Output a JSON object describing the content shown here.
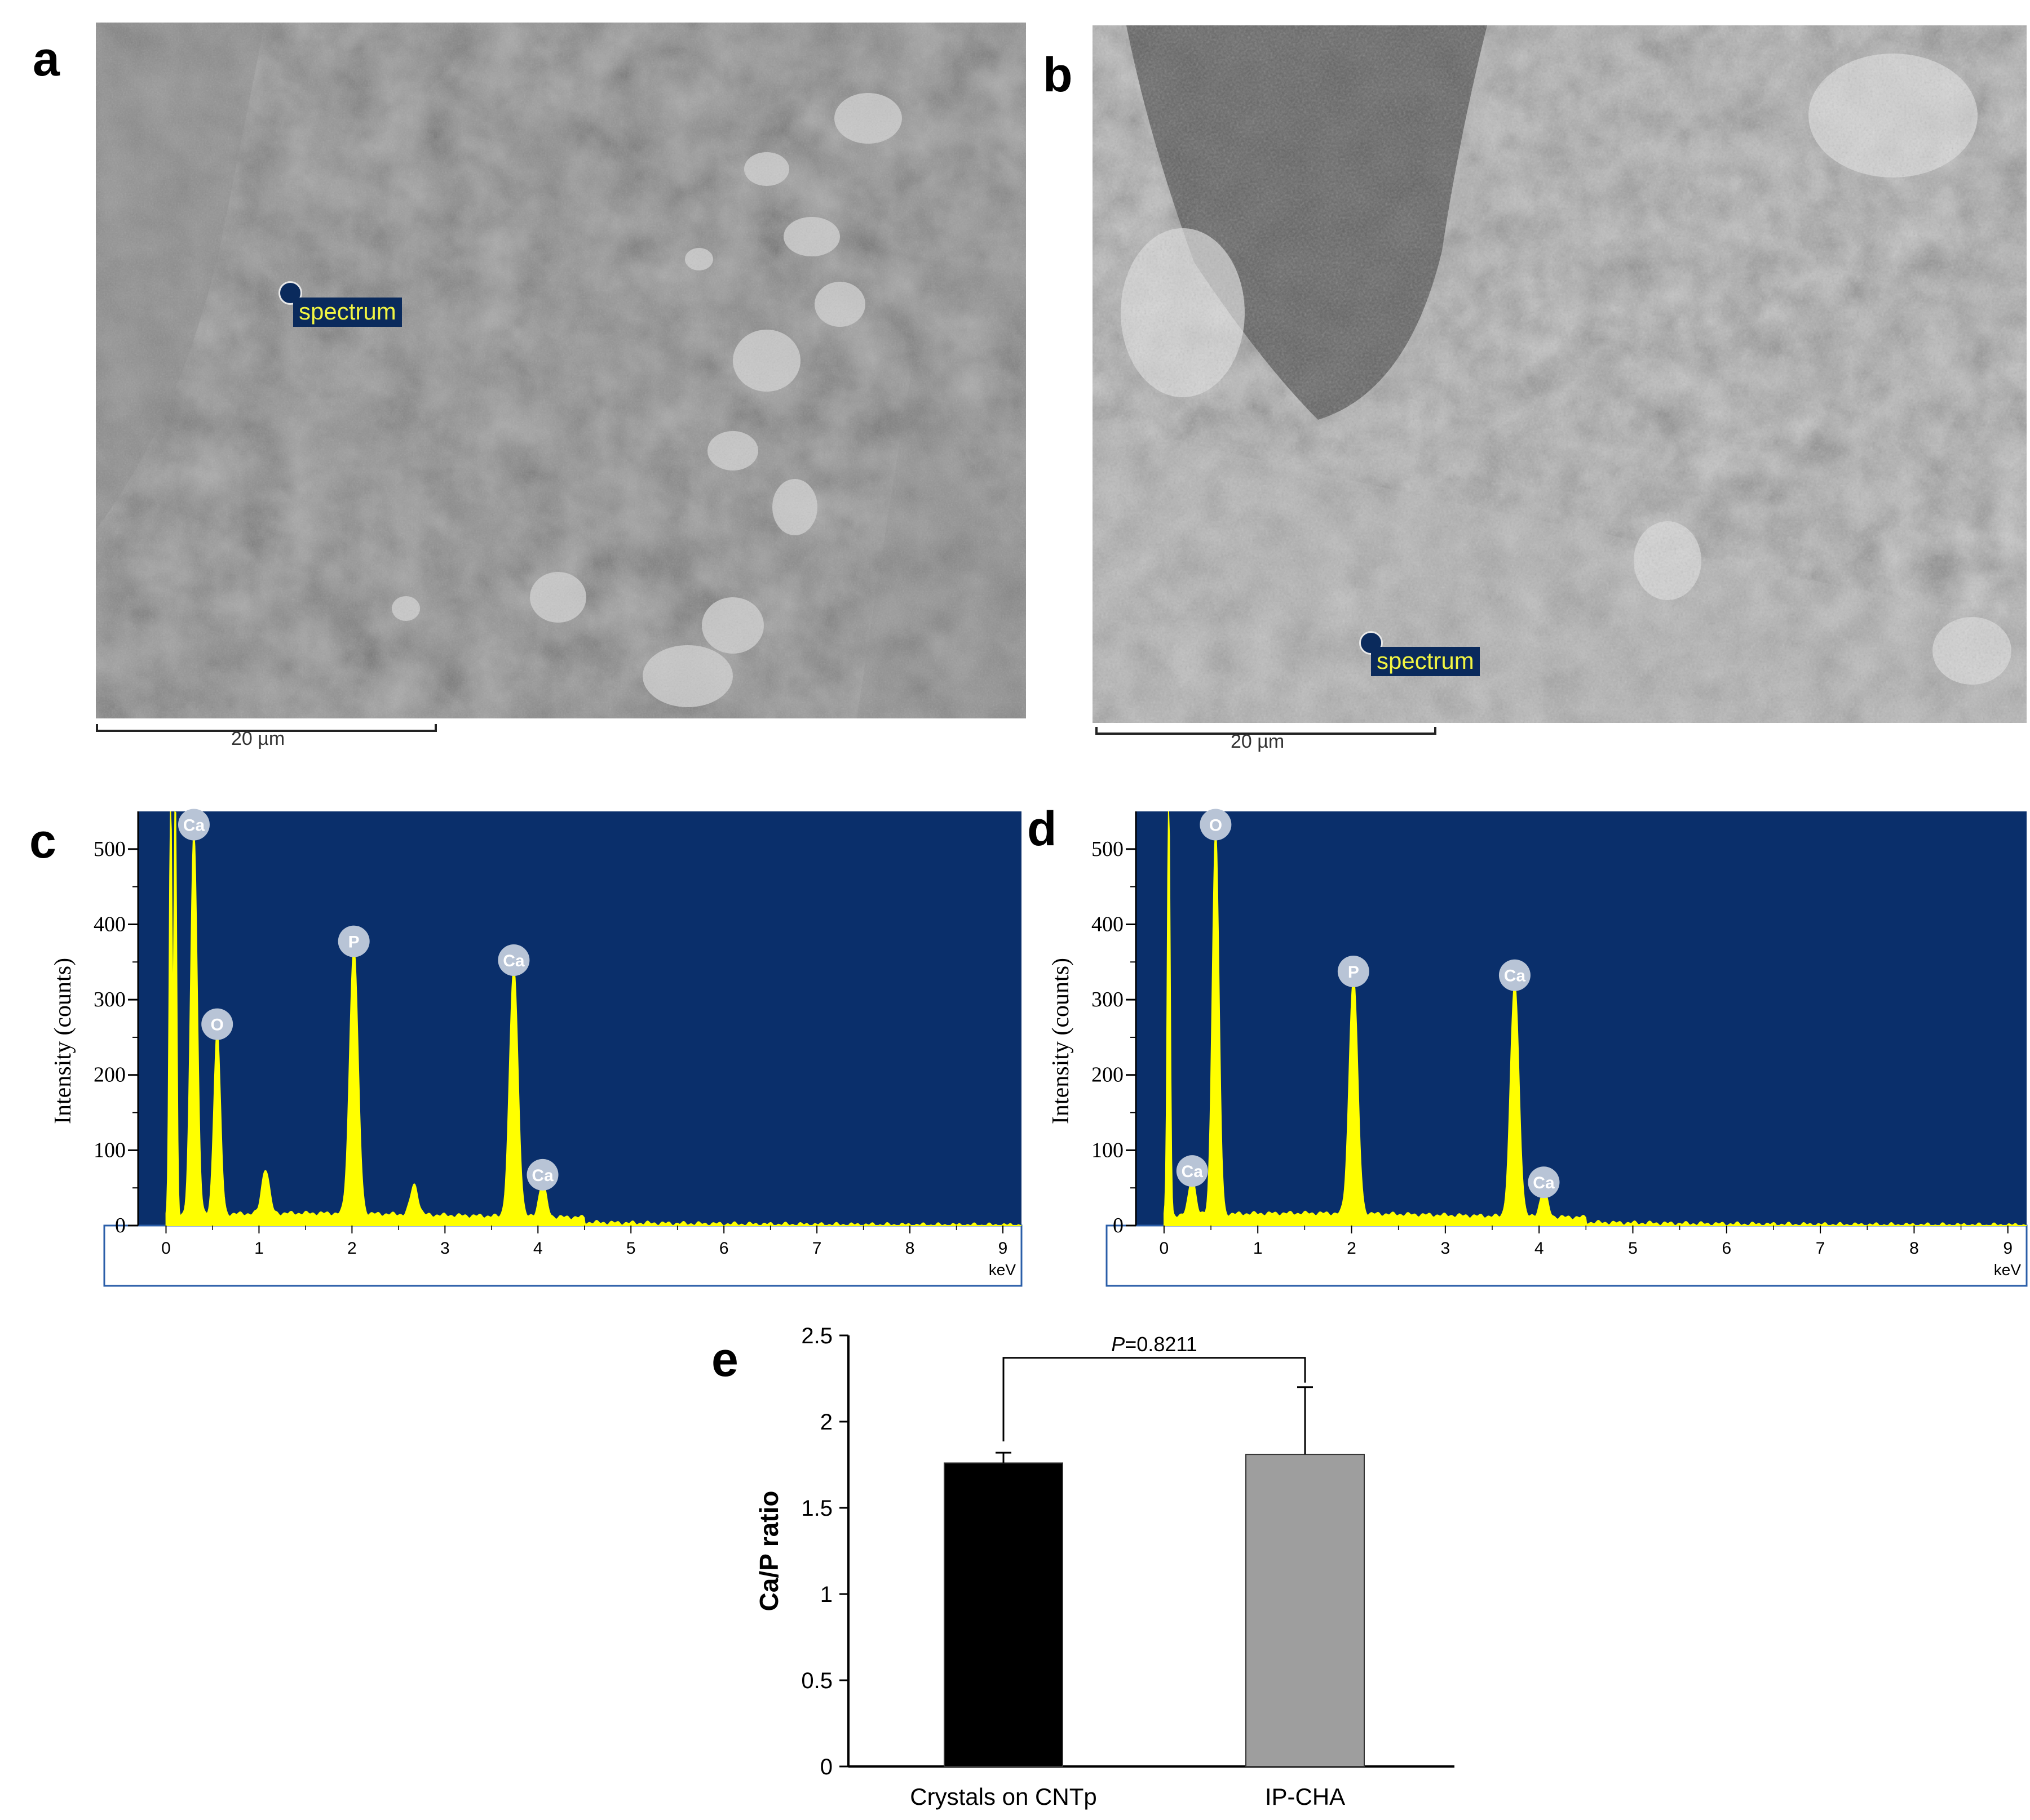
{
  "panels": {
    "a": "a",
    "b": "b",
    "c": "c",
    "d": "d",
    "e": "e"
  },
  "sem_a": {
    "marker_label": "spectrum",
    "scale_label": "20 µm"
  },
  "sem_b": {
    "marker_label": "spectrum",
    "scale_label": "20 µm"
  },
  "colors": {
    "spectrum_bg": "#0a2f6b",
    "spectrum_fill": "#ffff00",
    "peak_badge": "#b8c4d6",
    "bar_cntp": "#000000",
    "bar_ipcha": "#9e9e9e"
  },
  "chart_data": [
    {
      "id": "c",
      "type": "area",
      "ylabel": "Intensity (counts)",
      "xlabel": "keV",
      "xlim": [
        -0.3,
        9.2
      ],
      "ylim": [
        0,
        550
      ],
      "xticks": [
        0,
        1,
        2,
        3,
        4,
        5,
        6,
        7,
        8,
        9
      ],
      "yticks": [
        0,
        100,
        200,
        300,
        400,
        500
      ],
      "peaks": [
        {
          "x": 0.05,
          "y": 550,
          "w": 0.015,
          "label": ""
        },
        {
          "x": 0.1,
          "y": 550,
          "w": 0.015,
          "label": ""
        },
        {
          "x": 0.3,
          "y": 510,
          "w": 0.035,
          "label": "Ca"
        },
        {
          "x": 0.55,
          "y": 245,
          "w": 0.035,
          "label": "O"
        },
        {
          "x": 1.07,
          "y": 60,
          "w": 0.04,
          "label": ""
        },
        {
          "x": 2.02,
          "y": 355,
          "w": 0.045,
          "label": "P"
        },
        {
          "x": 2.67,
          "y": 40,
          "w": 0.04,
          "label": ""
        },
        {
          "x": 3.74,
          "y": 330,
          "w": 0.045,
          "label": "Ca"
        },
        {
          "x": 4.05,
          "y": 45,
          "w": 0.04,
          "label": "Ca"
        }
      ]
    },
    {
      "id": "d",
      "type": "area",
      "ylabel": "Intensity (counts)",
      "xlabel": "keV",
      "xlim": [
        -0.3,
        9.2
      ],
      "ylim": [
        0,
        550
      ],
      "xticks": [
        0,
        1,
        2,
        3,
        4,
        5,
        6,
        7,
        8,
        9
      ],
      "yticks": [
        0,
        100,
        200,
        300,
        400,
        500
      ],
      "peaks": [
        {
          "x": 0.05,
          "y": 550,
          "w": 0.015,
          "label": ""
        },
        {
          "x": 0.3,
          "y": 50,
          "w": 0.035,
          "label": "Ca"
        },
        {
          "x": 0.55,
          "y": 510,
          "w": 0.035,
          "label": "O"
        },
        {
          "x": 2.02,
          "y": 315,
          "w": 0.045,
          "label": "P"
        },
        {
          "x": 3.74,
          "y": 310,
          "w": 0.045,
          "label": "Ca"
        },
        {
          "x": 4.05,
          "y": 35,
          "w": 0.04,
          "label": "Ca"
        }
      ]
    },
    {
      "id": "e",
      "type": "bar",
      "categories": [
        "Crystals on CNTp",
        "IP-CHA"
      ],
      "values": [
        1.76,
        1.81
      ],
      "errors": [
        0.06,
        0.39
      ],
      "ylabel": "Ca/P ratio",
      "ylim": [
        0,
        2.5
      ],
      "yticks": [
        0,
        0.5,
        1,
        1.5,
        2,
        2.5
      ],
      "annotation": "P=0.8211"
    }
  ]
}
